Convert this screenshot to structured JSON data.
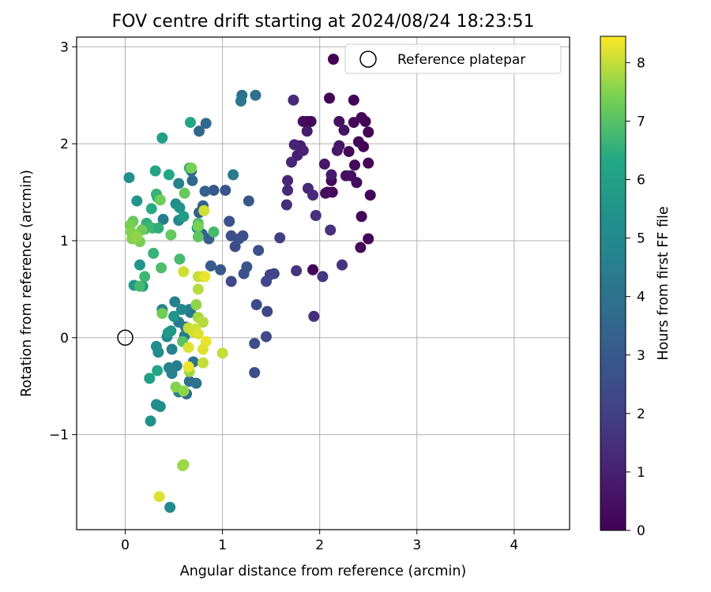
{
  "chart_data": {
    "type": "scatter",
    "title": "FOV centre drift starting at 2024/08/24 18:23:51",
    "xlabel": "Angular distance from reference (arcmin)",
    "ylabel": "Rotation from reference (arcmin)",
    "xlim": [
      -0.5,
      4.57
    ],
    "ylim": [
      -1.98,
      3.1
    ],
    "xticks": [
      0,
      1,
      2,
      3,
      4
    ],
    "yticks": [
      -1,
      0,
      1,
      2,
      3
    ],
    "grid": true,
    "legend": {
      "position": "top-right",
      "label": "Reference platepar"
    },
    "reference_point": {
      "x": 0,
      "y": 0
    },
    "colorbar": {
      "label": "Hours from first FF file",
      "min": 0,
      "max": 8.45,
      "ticks": [
        0,
        1,
        2,
        3,
        4,
        5,
        6,
        7,
        8
      ],
      "colormap": "viridis"
    },
    "points": [
      {
        "x": 2.1,
        "y": 2.47,
        "h": 0.1
      },
      {
        "x": 2.35,
        "y": 2.45,
        "h": 0.1
      },
      {
        "x": 2.43,
        "y": 2.27,
        "h": 0.1
      },
      {
        "x": 2.47,
        "y": 2.23,
        "h": 0.1
      },
      {
        "x": 2.35,
        "y": 2.22,
        "h": 0.2
      },
      {
        "x": 2.5,
        "y": 2.12,
        "h": 0.1
      },
      {
        "x": 2.4,
        "y": 2.02,
        "h": 0.2
      },
      {
        "x": 2.45,
        "y": 1.97,
        "h": 0.1
      },
      {
        "x": 2.3,
        "y": 1.92,
        "h": 0.2
      },
      {
        "x": 2.5,
        "y": 1.8,
        "h": 0.1
      },
      {
        "x": 2.36,
        "y": 1.78,
        "h": 0.2
      },
      {
        "x": 2.12,
        "y": 1.62,
        "h": 0.2
      },
      {
        "x": 2.08,
        "y": 1.5,
        "h": 0.2
      },
      {
        "x": 2.13,
        "y": 1.5,
        "h": 0.2
      },
      {
        "x": 2.52,
        "y": 1.47,
        "h": 0.1
      },
      {
        "x": 2.43,
        "y": 1.25,
        "h": 0.2
      },
      {
        "x": 2.5,
        "y": 1.02,
        "h": 0.1
      },
      {
        "x": 2.42,
        "y": 0.93,
        "h": 0.2
      },
      {
        "x": 1.93,
        "y": 0.7,
        "h": 0.1
      },
      {
        "x": 1.83,
        "y": 2.23,
        "h": 0.3
      },
      {
        "x": 1.87,
        "y": 2.23,
        "h": 0.3
      },
      {
        "x": 1.91,
        "y": 2.23,
        "h": 0.2
      },
      {
        "x": 2.06,
        "y": 1.49,
        "h": 0.4
      },
      {
        "x": 2.38,
        "y": 1.6,
        "h": 0.3
      },
      {
        "x": 2.27,
        "y": 1.67,
        "h": 0.4
      },
      {
        "x": 2.32,
        "y": 1.67,
        "h": 0.4
      },
      {
        "x": 2.2,
        "y": 2.23,
        "h": 0.5
      },
      {
        "x": 2.25,
        "y": 2.14,
        "h": 0.6
      },
      {
        "x": 2.2,
        "y": 1.98,
        "h": 0.6
      },
      {
        "x": 2.18,
        "y": 1.93,
        "h": 0.7
      },
      {
        "x": 2.05,
        "y": 1.79,
        "h": 0.7
      },
      {
        "x": 2.12,
        "y": 1.68,
        "h": 0.8
      },
      {
        "x": 1.87,
        "y": 2.13,
        "h": 0.8
      },
      {
        "x": 1.8,
        "y": 1.98,
        "h": 0.9
      },
      {
        "x": 1.77,
        "y": 1.88,
        "h": 0.9
      },
      {
        "x": 1.83,
        "y": 1.93,
        "h": 1.0
      },
      {
        "x": 1.73,
        "y": 2.45,
        "h": 1.3
      },
      {
        "x": 1.74,
        "y": 1.99,
        "h": 1.1
      },
      {
        "x": 1.71,
        "y": 1.81,
        "h": 1.2
      },
      {
        "x": 1.67,
        "y": 1.62,
        "h": 1.2
      },
      {
        "x": 1.67,
        "y": 1.52,
        "h": 1.3
      },
      {
        "x": 1.88,
        "y": 1.54,
        "h": 1.3
      },
      {
        "x": 1.93,
        "y": 1.47,
        "h": 1.3
      },
      {
        "x": 1.66,
        "y": 1.37,
        "h": 1.4
      },
      {
        "x": 1.96,
        "y": 1.26,
        "h": 1.5
      },
      {
        "x": 2.11,
        "y": 1.11,
        "h": 1.5
      },
      {
        "x": 1.76,
        "y": 0.69,
        "h": 1.6
      },
      {
        "x": 2.23,
        "y": 0.75,
        "h": 1.6
      },
      {
        "x": 1.94,
        "y": 0.22,
        "h": 1.4
      },
      {
        "x": 2.03,
        "y": 0.63,
        "h": 1.7
      },
      {
        "x": 1.59,
        "y": 1.03,
        "h": 2.0
      },
      {
        "x": 1.49,
        "y": 0.65,
        "h": 2.1
      },
      {
        "x": 1.53,
        "y": 0.66,
        "h": 2.2
      },
      {
        "x": 1.45,
        "y": 0.58,
        "h": 2.2
      },
      {
        "x": 1.46,
        "y": 0.27,
        "h": 2.3
      },
      {
        "x": 1.45,
        "y": 0.01,
        "h": 2.3
      },
      {
        "x": 1.35,
        "y": 0.34,
        "h": 2.4
      },
      {
        "x": 1.33,
        "y": -0.06,
        "h": 2.5
      },
      {
        "x": 1.33,
        "y": -0.36,
        "h": 2.5
      },
      {
        "x": 1.37,
        "y": 0.9,
        "h": 2.6
      },
      {
        "x": 1.09,
        "y": 0.58,
        "h": 2.3
      },
      {
        "x": 1.22,
        "y": 0.66,
        "h": 2.6
      },
      {
        "x": 1.25,
        "y": 0.73,
        "h": 2.7
      },
      {
        "x": 1.13,
        "y": 0.94,
        "h": 2.4
      },
      {
        "x": 1.09,
        "y": 1.05,
        "h": 2.5
      },
      {
        "x": 1.17,
        "y": 1.02,
        "h": 2.6
      },
      {
        "x": 1.21,
        "y": 1.05,
        "h": 2.6
      },
      {
        "x": 1.07,
        "y": 1.2,
        "h": 2.7
      },
      {
        "x": 1.03,
        "y": 1.52,
        "h": 2.8
      },
      {
        "x": 1.27,
        "y": 1.41,
        "h": 2.9
      },
      {
        "x": 0.91,
        "y": 1.52,
        "h": 2.9
      },
      {
        "x": 0.98,
        "y": 0.7,
        "h": 3.0
      },
      {
        "x": 0.88,
        "y": 0.74,
        "h": 3.1
      },
      {
        "x": 0.86,
        "y": 1.02,
        "h": 3.2
      },
      {
        "x": 0.82,
        "y": 1.51,
        "h": 3.3
      },
      {
        "x": 0.8,
        "y": 1.36,
        "h": 3.4
      },
      {
        "x": 0.76,
        "y": 1.29,
        "h": 3.3
      },
      {
        "x": 0.79,
        "y": 1.07,
        "h": 3.5
      },
      {
        "x": 0.69,
        "y": 1.62,
        "h": 3.6
      },
      {
        "x": 0.68,
        "y": 1.72,
        "h": 3.7
      },
      {
        "x": 0.76,
        "y": 2.13,
        "h": 3.5
      },
      {
        "x": 0.83,
        "y": 2.21,
        "h": 3.6
      },
      {
        "x": 1.34,
        "y": 2.5,
        "h": 3.9
      },
      {
        "x": 1.2,
        "y": 2.5,
        "h": 4.0
      },
      {
        "x": 1.19,
        "y": 2.44,
        "h": 4.1
      },
      {
        "x": 1.11,
        "y": 1.68,
        "h": 4.3
      },
      {
        "x": 0.66,
        "y": -0.45,
        "h": 3.9
      },
      {
        "x": 0.63,
        "y": -0.58,
        "h": 3.8
      },
      {
        "x": 0.73,
        "y": -0.47,
        "h": 4.0
      },
      {
        "x": 0.7,
        "y": -0.25,
        "h": 3.9
      },
      {
        "x": 0.68,
        "y": 0.08,
        "h": 4.0
      },
      {
        "x": 0.62,
        "y": 0.11,
        "h": 4.1
      },
      {
        "x": 0.67,
        "y": 0.26,
        "h": 4.2
      },
      {
        "x": 0.66,
        "y": 0.29,
        "h": 4.3
      },
      {
        "x": 0.55,
        "y": 0.16,
        "h": 4.4
      },
      {
        "x": 0.61,
        "y": 0.02,
        "h": 4.4
      },
      {
        "x": 0.53,
        "y": -0.29,
        "h": 4.5
      },
      {
        "x": 0.55,
        "y": -0.56,
        "h": 4.6
      },
      {
        "x": 0.48,
        "y": -0.37,
        "h": 4.7
      },
      {
        "x": 0.45,
        "y": -0.31,
        "h": 4.6
      },
      {
        "x": 0.48,
        "y": -0.12,
        "h": 4.7
      },
      {
        "x": 0.43,
        "y": 0.01,
        "h": 4.8
      },
      {
        "x": 0.38,
        "y": 0.29,
        "h": 4.8
      },
      {
        "x": 0.51,
        "y": 0.37,
        "h": 4.7
      },
      {
        "x": 0.58,
        "y": 0.29,
        "h": 4.9
      },
      {
        "x": 0.34,
        "y": -0.15,
        "h": 5.0
      },
      {
        "x": 0.32,
        "y": -0.09,
        "h": 5.1
      },
      {
        "x": 0.32,
        "y": -0.69,
        "h": 5.1
      },
      {
        "x": 0.36,
        "y": -0.71,
        "h": 5.2
      },
      {
        "x": 0.26,
        "y": -0.86,
        "h": 5.3
      },
      {
        "x": 0.46,
        "y": -1.75,
        "h": 5.0
      },
      {
        "x": 0.39,
        "y": 1.22,
        "h": 4.5
      },
      {
        "x": 0.55,
        "y": 1.59,
        "h": 4.6
      },
      {
        "x": 0.55,
        "y": 1.21,
        "h": 4.9
      },
      {
        "x": 0.52,
        "y": 1.38,
        "h": 5.2
      },
      {
        "x": 0.56,
        "y": 1.34,
        "h": 5.4
      },
      {
        "x": 0.5,
        "y": 0.22,
        "h": 5.5
      },
      {
        "x": 0.47,
        "y": 0.07,
        "h": 5.6
      },
      {
        "x": 0.44,
        "y": 0.05,
        "h": 5.6
      },
      {
        "x": 0.6,
        "y": 1.25,
        "h": 5.8
      },
      {
        "x": 0.74,
        "y": 1.13,
        "h": 5.8
      },
      {
        "x": 0.04,
        "y": 1.65,
        "h": 5.3
      },
      {
        "x": 0.12,
        "y": 1.41,
        "h": 5.5
      },
      {
        "x": 0.15,
        "y": 0.75,
        "h": 5.5
      },
      {
        "x": 0.18,
        "y": 0.53,
        "h": 5.6
      },
      {
        "x": 0.09,
        "y": 0.54,
        "h": 5.7
      },
      {
        "x": 0.38,
        "y": 2.06,
        "h": 5.9
      },
      {
        "x": 0.67,
        "y": 2.22,
        "h": 6.3
      },
      {
        "x": 0.66,
        "y": 1.75,
        "h": 6.5
      },
      {
        "x": 0.45,
        "y": 1.68,
        "h": 6.3
      },
      {
        "x": 0.31,
        "y": 1.72,
        "h": 6.2
      },
      {
        "x": 0.33,
        "y": 1.45,
        "h": 6.4
      },
      {
        "x": 0.32,
        "y": 1.48,
        "h": 6.6
      },
      {
        "x": 0.27,
        "y": 1.33,
        "h": 6.4
      },
      {
        "x": 0.22,
        "y": 1.18,
        "h": 6.5
      },
      {
        "x": 0.21,
        "y": 1.14,
        "h": 6.6
      },
      {
        "x": 0.2,
        "y": 1.12,
        "h": 6.6
      },
      {
        "x": 0.28,
        "y": 1.13,
        "h": 6.7
      },
      {
        "x": 0.34,
        "y": 1.13,
        "h": 6.5
      },
      {
        "x": 0.29,
        "y": 0.87,
        "h": 6.6
      },
      {
        "x": 0.2,
        "y": 0.63,
        "h": 6.7
      },
      {
        "x": 0.15,
        "y": 0.53,
        "h": 6.8
      },
      {
        "x": 0.56,
        "y": 0.81,
        "h": 6.8
      },
      {
        "x": 0.37,
        "y": 0.72,
        "h": 6.9
      },
      {
        "x": 0.91,
        "y": 1.09,
        "h": 6.8
      },
      {
        "x": 0.75,
        "y": 1.18,
        "h": 6.9
      },
      {
        "x": 0.75,
        "y": 1.04,
        "h": 7.1
      },
      {
        "x": 0.47,
        "y": 1.06,
        "h": 7.2
      },
      {
        "x": 0.61,
        "y": 1.49,
        "h": 7.2
      },
      {
        "x": 0.36,
        "y": 1.42,
        "h": 7.3
      },
      {
        "x": 0.17,
        "y": 1.11,
        "h": 7.3
      },
      {
        "x": 0.15,
        "y": 0.99,
        "h": 7.4
      },
      {
        "x": 0.08,
        "y": 1.2,
        "h": 7.2
      },
      {
        "x": 0.05,
        "y": 1.16,
        "h": 7.4
      },
      {
        "x": 0.06,
        "y": 1.09,
        "h": 7.5
      },
      {
        "x": 0.07,
        "y": 1.02,
        "h": 7.5
      },
      {
        "x": 0.12,
        "y": 1.04,
        "h": 7.6
      },
      {
        "x": 0.68,
        "y": 1.75,
        "h": 7.4
      },
      {
        "x": 0.75,
        "y": 1.15,
        "h": 7.4
      },
      {
        "x": 0.59,
        "y": -0.04,
        "h": 7.0
      },
      {
        "x": 0.38,
        "y": 0.25,
        "h": 7.3
      },
      {
        "x": 0.25,
        "y": -0.42,
        "h": 6.0
      },
      {
        "x": 0.33,
        "y": -0.34,
        "h": 6.2
      },
      {
        "x": 0.52,
        "y": -0.51,
        "h": 7.5
      },
      {
        "x": 0.6,
        "y": -0.55,
        "h": 7.6
      },
      {
        "x": 0.66,
        "y": -0.35,
        "h": 7.7
      },
      {
        "x": 0.73,
        "y": 0.34,
        "h": 7.6
      },
      {
        "x": 0.75,
        "y": 0.5,
        "h": 7.9
      },
      {
        "x": 0.75,
        "y": 0.63,
        "h": 8.0
      },
      {
        "x": 0.8,
        "y": 0.63,
        "h": 8.1
      },
      {
        "x": 0.82,
        "y": 0.63,
        "h": 8.3
      },
      {
        "x": 0.6,
        "y": 0.68,
        "h": 8.1
      },
      {
        "x": 0.81,
        "y": 1.31,
        "h": 8.1
      },
      {
        "x": 0.75,
        "y": 0.21,
        "h": 7.8
      },
      {
        "x": 0.8,
        "y": 0.16,
        "h": 7.9
      },
      {
        "x": 0.65,
        "y": 0.1,
        "h": 8.0
      },
      {
        "x": 0.7,
        "y": 0.06,
        "h": 8.1
      },
      {
        "x": 0.72,
        "y": 0.09,
        "h": 8.1
      },
      {
        "x": 0.75,
        "y": 0.04,
        "h": 8.2
      },
      {
        "x": 0.83,
        "y": -0.04,
        "h": 8.3
      },
      {
        "x": 0.8,
        "y": -0.12,
        "h": 8.2
      },
      {
        "x": 0.65,
        "y": -0.1,
        "h": 8.2
      },
      {
        "x": 0.65,
        "y": -0.3,
        "h": 8.3
      },
      {
        "x": 0.8,
        "y": -0.26,
        "h": 8.0
      },
      {
        "x": 1.0,
        "y": -0.16,
        "h": 8.0
      },
      {
        "x": 0.6,
        "y": -1.31,
        "h": 7.6
      },
      {
        "x": 0.59,
        "y": -1.32,
        "h": 7.7
      },
      {
        "x": 0.35,
        "y": -1.64,
        "h": 8.2
      }
    ]
  }
}
